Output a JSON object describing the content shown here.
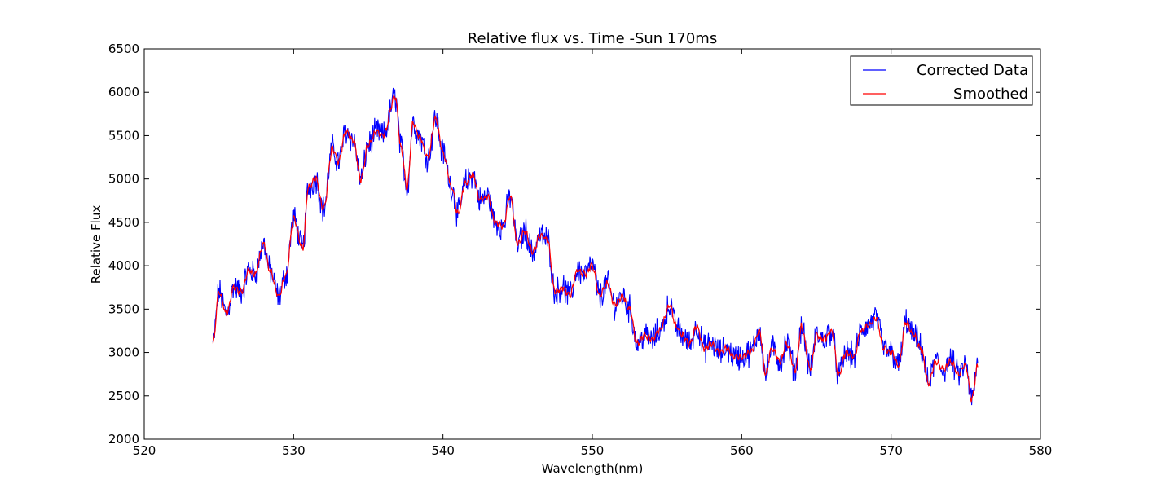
{
  "chart_data": {
    "type": "line",
    "title": "Relative flux vs. Time -Sun 170ms",
    "xlabel": "Wavelength(nm)",
    "ylabel": "Relative Flux",
    "xlim": [
      520,
      580
    ],
    "ylim": [
      2000,
      6500
    ],
    "xticks": [
      520,
      530,
      540,
      550,
      560,
      570,
      580
    ],
    "yticks": [
      2000,
      2500,
      3000,
      3500,
      4000,
      4500,
      5000,
      5500,
      6000,
      6500
    ],
    "grid": false,
    "legend": "top-right",
    "x_range": [
      524.6,
      575.8
    ],
    "series": [
      {
        "name": "Corrected Data",
        "color": "#0000ff",
        "x": [
          524.6,
          525.0,
          525.5,
          526.0,
          526.5,
          527.0,
          527.4,
          528.0,
          528.4,
          529.0,
          529.5,
          530.0,
          530.6,
          531.0,
          531.5,
          532.0,
          532.6,
          533.0,
          533.5,
          534.0,
          534.5,
          535.0,
          535.6,
          536.0,
          536.8,
          537.2,
          537.6,
          538.0,
          538.4,
          539.0,
          539.5,
          540.0,
          540.6,
          541.0,
          541.5,
          542.0,
          542.5,
          543.0,
          543.5,
          544.0,
          544.5,
          545.0,
          545.5,
          546.0,
          546.5,
          547.0,
          547.5,
          548.0,
          548.5,
          549.0,
          549.5,
          550.0,
          550.5,
          551.0,
          551.5,
          552.0,
          552.5,
          553.0,
          553.5,
          554.0,
          554.5,
          555.2,
          555.6,
          556.0,
          556.5,
          557.0,
          557.5,
          558.0,
          558.5,
          559.0,
          559.5,
          560.0,
          560.6,
          561.2,
          561.6,
          562.0,
          562.6,
          563.0,
          563.6,
          564.0,
          564.6,
          565.0,
          565.5,
          566.0,
          566.5,
          567.0,
          567.5,
          568.0,
          568.4,
          569.0,
          569.5,
          570.0,
          570.5,
          571.0,
          571.5,
          572.0,
          572.5,
          573.0,
          573.5,
          574.0,
          574.5,
          575.0,
          575.4,
          575.8
        ],
        "values": [
          3100,
          3700,
          3450,
          3750,
          3700,
          3950,
          3900,
          4250,
          3950,
          3650,
          3900,
          4550,
          4200,
          4900,
          5000,
          4650,
          5350,
          5200,
          5550,
          5450,
          5000,
          5400,
          5550,
          5500,
          5950,
          5350,
          4900,
          5650,
          5500,
          5250,
          5700,
          5300,
          4900,
          4600,
          4950,
          5050,
          4750,
          4800,
          4500,
          4450,
          4800,
          4250,
          4400,
          4150,
          4350,
          4300,
          3700,
          3750,
          3650,
          3950,
          3900,
          4000,
          3650,
          3800,
          3550,
          3650,
          3500,
          3100,
          3200,
          3150,
          3250,
          3550,
          3300,
          3200,
          3100,
          3300,
          3050,
          3100,
          3000,
          3050,
          2950,
          2950,
          3000,
          3250,
          2750,
          3050,
          2900,
          3100,
          2800,
          3300,
          2800,
          3200,
          3150,
          3250,
          2750,
          3000,
          2950,
          3250,
          3300,
          3400,
          3050,
          3000,
          2850,
          3350,
          3200,
          3050,
          2650,
          2900,
          2800,
          2900,
          2750,
          2850,
          2450,
          2850
        ]
      },
      {
        "name": "Smoothed",
        "color": "#ff0000",
        "x": [
          524.6,
          525.0,
          525.5,
          526.0,
          526.5,
          527.0,
          527.4,
          528.0,
          528.4,
          529.0,
          529.5,
          530.0,
          530.6,
          531.0,
          531.5,
          532.0,
          532.6,
          533.0,
          533.5,
          534.0,
          534.5,
          535.0,
          535.6,
          536.0,
          536.8,
          537.2,
          537.6,
          538.0,
          538.4,
          539.0,
          539.5,
          540.0,
          540.6,
          541.0,
          541.5,
          542.0,
          542.5,
          543.0,
          543.5,
          544.0,
          544.5,
          545.0,
          545.5,
          546.0,
          546.5,
          547.0,
          547.5,
          548.0,
          548.5,
          549.0,
          549.5,
          550.0,
          550.5,
          551.0,
          551.5,
          552.0,
          552.5,
          553.0,
          553.5,
          554.0,
          554.5,
          555.2,
          555.6,
          556.0,
          556.5,
          557.0,
          557.5,
          558.0,
          558.5,
          559.0,
          559.5,
          560.0,
          560.6,
          561.2,
          561.6,
          562.0,
          562.6,
          563.0,
          563.6,
          564.0,
          564.6,
          565.0,
          565.5,
          566.0,
          566.5,
          567.0,
          567.5,
          568.0,
          568.4,
          569.0,
          569.5,
          570.0,
          570.5,
          571.0,
          571.5,
          572.0,
          572.5,
          573.0,
          573.5,
          574.0,
          574.5,
          575.0,
          575.4,
          575.8
        ],
        "values": [
          3100,
          3700,
          3450,
          3750,
          3700,
          3950,
          3900,
          4250,
          3950,
          3650,
          3900,
          4550,
          4200,
          4900,
          5000,
          4650,
          5350,
          5200,
          5550,
          5450,
          5000,
          5400,
          5550,
          5500,
          5950,
          5350,
          4900,
          5650,
          5500,
          5250,
          5700,
          5300,
          4900,
          4600,
          4950,
          5050,
          4750,
          4800,
          4500,
          4450,
          4800,
          4250,
          4400,
          4150,
          4350,
          4300,
          3700,
          3750,
          3650,
          3950,
          3900,
          4000,
          3650,
          3800,
          3550,
          3650,
          3500,
          3100,
          3200,
          3150,
          3250,
          3550,
          3300,
          3200,
          3100,
          3300,
          3050,
          3100,
          3000,
          3050,
          2950,
          2950,
          3000,
          3250,
          2750,
          3050,
          2900,
          3100,
          2800,
          3300,
          2800,
          3200,
          3150,
          3250,
          2750,
          3000,
          2950,
          3250,
          3300,
          3400,
          3050,
          3000,
          2850,
          3350,
          3200,
          3050,
          2650,
          2900,
          2800,
          2900,
          2750,
          2850,
          2450,
          2850
        ]
      }
    ]
  }
}
